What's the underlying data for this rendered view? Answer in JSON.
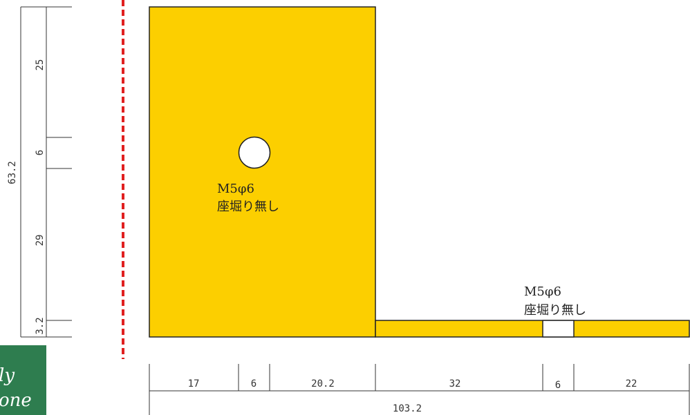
{
  "colors": {
    "part_fill": "#FCCF00",
    "outline": "#222222",
    "centerline": "#E02020",
    "logo_bg": "#2E7D4F",
    "dim_line": "#333333"
  },
  "vertical_dims": {
    "total": "63.2",
    "top": "25",
    "hole": "6",
    "lower": "29",
    "bottom": "3.2"
  },
  "horizontal_dims": {
    "a": "17",
    "b": "6",
    "c": "20.2",
    "d": "32",
    "e": "6",
    "f": "22",
    "total": "103.2"
  },
  "hole_labels": {
    "upper": {
      "line1": "M5φ6",
      "line2": "座堀り無し"
    },
    "lower": {
      "line1": "M5φ6",
      "line2": "座堀り無し"
    }
  },
  "logo": {
    "line1": "ly",
    "line2": "one"
  }
}
